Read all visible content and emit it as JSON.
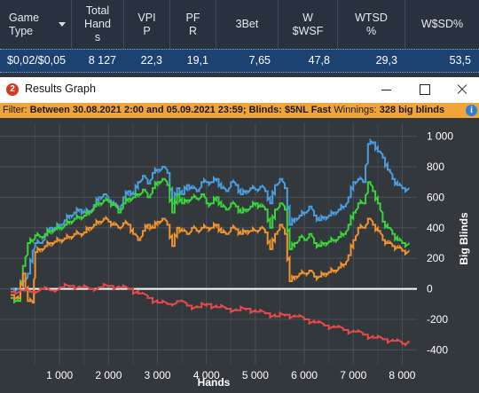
{
  "stats_table": {
    "columns": [
      "Game Type",
      "Total Hands",
      "VPIP",
      "PFR",
      "3Bet",
      "W $WSF",
      "WTSD %",
      "W$SD%"
    ],
    "column_lines": [
      [
        "Game",
        "Type"
      ],
      [
        "Total",
        "Hand",
        "s"
      ],
      [
        "VPI",
        "P"
      ],
      [
        "PF",
        "R"
      ],
      [
        "3Bet"
      ],
      [
        "W",
        "$WSF"
      ],
      [
        "WTSD",
        "%"
      ],
      [
        "W$SD%"
      ]
    ],
    "row": [
      "$0,02/$0,05",
      "8 127",
      "22,3",
      "19,1",
      "7,65",
      "47,8",
      "29,3",
      "53,5"
    ]
  },
  "window": {
    "title": "Results Graph",
    "app_icon": "2"
  },
  "filter": {
    "prefix": "Filter:",
    "text": "Between 30.08.2021 2:00 and 05.09.2021 23:59; Blinds: $5NL Fast",
    "winnings_label": "Winnings:",
    "winnings_value": "328 big blinds",
    "info_icon": "i"
  },
  "chart_data": {
    "type": "line",
    "xlabel": "Hands",
    "ylabel": "Big Blinds",
    "xlim": [
      0,
      8300
    ],
    "ylim": [
      -450,
      1050
    ],
    "x_ticks": [
      1000,
      2000,
      3000,
      4000,
      5000,
      6000,
      7000,
      8000
    ],
    "x_tick_labels": [
      "1 000",
      "2 000",
      "3 000",
      "4 000",
      "5 000",
      "6 000",
      "7 000",
      "8 000"
    ],
    "y_ticks": [
      1000,
      800,
      600,
      400,
      200,
      0,
      -200,
      -400
    ],
    "y_tick_labels": [
      "1 000",
      "800",
      "600",
      "400",
      "200",
      "0",
      "-200",
      "-400"
    ],
    "grid": true,
    "zero_line": true,
    "series": [
      {
        "color": "#4a9ee0",
        "x": [
          0,
          150,
          250,
          350,
          450,
          500,
          600,
          700,
          800,
          900,
          1000,
          1100,
          1200,
          1300,
          1400,
          1500,
          1600,
          1700,
          1800,
          1900,
          2000,
          2100,
          2200,
          2300,
          2400,
          2500,
          2600,
          2700,
          2800,
          2900,
          3000,
          3100,
          3200,
          3300,
          3400,
          3500,
          3600,
          3700,
          3800,
          3900,
          4000,
          4100,
          4200,
          4300,
          4400,
          4500,
          4600,
          4700,
          4800,
          4900,
          5000,
          5100,
          5200,
          5300,
          5400,
          5500,
          5600,
          5700,
          5800,
          5900,
          6000,
          6100,
          6200,
          6300,
          6400,
          6500,
          6600,
          6700,
          6800,
          6900,
          7000,
          7100,
          7200,
          7300,
          7400,
          7500,
          7600,
          7700,
          7800,
          7900,
          8000,
          8127
        ],
        "y": [
          0,
          0,
          50,
          100,
          250,
          300,
          300,
          350,
          400,
          400,
          420,
          450,
          480,
          500,
          520,
          500,
          510,
          550,
          600,
          620,
          580,
          560,
          520,
          600,
          640,
          620,
          700,
          740,
          690,
          760,
          780,
          800,
          760,
          560,
          660,
          620,
          680,
          660,
          640,
          700,
          700,
          700,
          720,
          660,
          640,
          700,
          680,
          620,
          640,
          660,
          650,
          670,
          640,
          560,
          680,
          720,
          660,
          420,
          460,
          480,
          500,
          540,
          480,
          450,
          470,
          480,
          500,
          520,
          540,
          600,
          700,
          720,
          700,
          950,
          960,
          900,
          860,
          780,
          720,
          680,
          660,
          650
        ]
      },
      {
        "color": "#3ad43a",
        "x": [
          0,
          150,
          250,
          350,
          450,
          500,
          600,
          700,
          800,
          900,
          1000,
          1100,
          1200,
          1300,
          1400,
          1500,
          1600,
          1700,
          1800,
          1900,
          2000,
          2100,
          2200,
          2300,
          2400,
          2500,
          2600,
          2700,
          2800,
          2900,
          3000,
          3100,
          3200,
          3300,
          3400,
          3500,
          3600,
          3700,
          3800,
          3900,
          4000,
          4100,
          4200,
          4300,
          4400,
          4500,
          4600,
          4700,
          4800,
          4900,
          5000,
          5100,
          5200,
          5300,
          5400,
          5500,
          5600,
          5700,
          5800,
          5900,
          6000,
          6100,
          6200,
          6300,
          6400,
          6500,
          6600,
          6700,
          6800,
          6900,
          7000,
          7100,
          7200,
          7300,
          7400,
          7500,
          7600,
          7700,
          7800,
          7900,
          8000,
          8127
        ],
        "y": [
          -60,
          -80,
          150,
          300,
          320,
          350,
          340,
          360,
          380,
          390,
          400,
          420,
          440,
          460,
          470,
          480,
          500,
          540,
          560,
          580,
          570,
          550,
          500,
          560,
          590,
          600,
          620,
          650,
          600,
          660,
          700,
          720,
          680,
          500,
          620,
          560,
          580,
          600,
          590,
          620,
          560,
          560,
          600,
          540,
          520,
          560,
          540,
          500,
          520,
          540,
          560,
          540,
          520,
          400,
          520,
          560,
          520,
          260,
          300,
          340,
          320,
          360,
          300,
          280,
          300,
          310,
          320,
          340,
          360,
          420,
          500,
          560,
          560,
          700,
          640,
          560,
          440,
          400,
          360,
          320,
          300,
          290
        ]
      },
      {
        "color": "#f0922e",
        "x": [
          0,
          150,
          250,
          350,
          450,
          500,
          600,
          700,
          800,
          900,
          1000,
          1100,
          1200,
          1300,
          1400,
          1500,
          1600,
          1700,
          1800,
          1900,
          2000,
          2100,
          2200,
          2300,
          2400,
          2500,
          2600,
          2700,
          2800,
          2900,
          3000,
          3100,
          3200,
          3300,
          3400,
          3500,
          3600,
          3700,
          3800,
          3900,
          4000,
          4100,
          4200,
          4300,
          4400,
          4500,
          4600,
          4700,
          4800,
          4900,
          5000,
          5100,
          5200,
          5300,
          5400,
          5500,
          5600,
          5700,
          5800,
          5900,
          6000,
          6100,
          6200,
          6300,
          6400,
          6500,
          6600,
          6700,
          6800,
          6900,
          7000,
          7100,
          7200,
          7300,
          7400,
          7500,
          7600,
          7700,
          7800,
          7900,
          8000,
          8127
        ],
        "y": [
          -40,
          -60,
          100,
          -80,
          -90,
          240,
          260,
          280,
          300,
          310,
          320,
          330,
          340,
          360,
          360,
          370,
          400,
          420,
          440,
          460,
          440,
          420,
          400,
          430,
          420,
          360,
          320,
          380,
          420,
          400,
          440,
          460,
          420,
          280,
          400,
          380,
          360,
          400,
          380,
          400,
          400,
          400,
          420,
          370,
          360,
          400,
          390,
          360,
          380,
          380,
          380,
          400,
          370,
          260,
          360,
          420,
          360,
          50,
          80,
          100,
          100,
          120,
          80,
          80,
          100,
          110,
          120,
          140,
          160,
          220,
          320,
          400,
          400,
          460,
          420,
          380,
          320,
          300,
          280,
          270,
          250,
          240
        ]
      },
      {
        "color": "#e84a4a",
        "x": [
          0,
          200,
          400,
          600,
          800,
          1000,
          1200,
          1400,
          1600,
          1800,
          2000,
          2200,
          2400,
          2600,
          2800,
          3000,
          3200,
          3400,
          3600,
          3800,
          4000,
          4200,
          4400,
          4600,
          4800,
          5000,
          5200,
          5400,
          5600,
          5800,
          6000,
          6200,
          6400,
          6600,
          6800,
          7000,
          7200,
          7400,
          7600,
          7800,
          8000,
          8127
        ],
        "y": [
          -20,
          -10,
          -20,
          0,
          -10,
          10,
          20,
          10,
          0,
          10,
          20,
          10,
          0,
          -30,
          -60,
          -90,
          -100,
          -80,
          -110,
          -120,
          -100,
          -120,
          -130,
          -140,
          -130,
          -150,
          -160,
          -180,
          -170,
          -180,
          -200,
          -220,
          -240,
          -250,
          -270,
          -280,
          -300,
          -320,
          -330,
          -340,
          -360,
          -340
        ]
      }
    ]
  }
}
